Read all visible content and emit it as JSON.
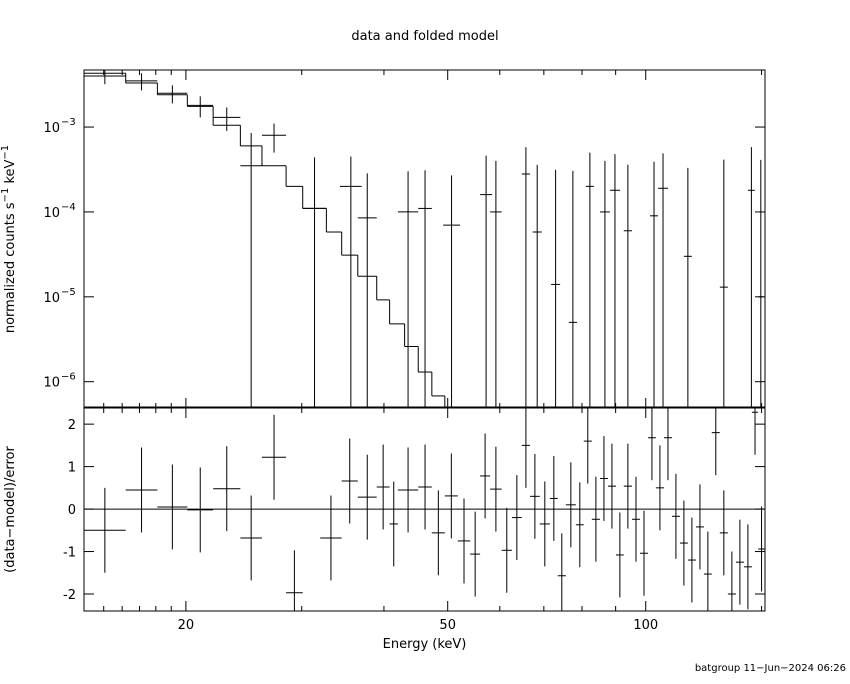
{
  "chart_data": [
    {
      "type": "step-errorbar",
      "title": "data and folded model",
      "ylabel": [
        "normalized counts s",
        "−1",
        " keV",
        "−1"
      ],
      "xlog": true,
      "ylog": true,
      "xlim": [
        14,
        151.8
      ],
      "xticks": [
        20,
        50,
        100
      ],
      "xminorticks": [
        15,
        16,
        17,
        18,
        19,
        30,
        40,
        60,
        70,
        80,
        90,
        150
      ],
      "ylim": [
        4.9e-07,
        0.0047
      ],
      "yticks": [
        {
          "value": 1e-06,
          "label": "10",
          "sup": "−6"
        },
        {
          "value": 1e-05,
          "label": "10",
          "sup": "−5"
        },
        {
          "value": 0.0001,
          "label": "10",
          "sup": "−4"
        },
        {
          "value": 0.001,
          "label": "10",
          "sup": "−3"
        }
      ],
      "color": "#000000",
      "data": {
        "x_low": [
          14.0,
          16.2,
          18.1,
          20.1,
          22.0,
          24.2,
          26.1,
          30.1,
          34.3,
          36.5,
          42.0,
          45.1,
          49.2,
          56.0,
          58.0,
          64.8,
          67.3,
          71.8,
          76.4,
          81.1,
          85.2,
          88.2,
          92.6,
          101.5,
          104.4,
          114.3,
          129.6,
          143.0,
          148.2
        ],
        "x_high": [
          16.2,
          18.1,
          20.1,
          22.0,
          24.2,
          26.1,
          28.4,
          32.7,
          37.0,
          39.0,
          45.1,
          47.3,
          52.2,
          58.4,
          60.4,
          66.7,
          69.5,
          74.1,
          78.6,
          83.4,
          88.2,
          91.4,
          95.3,
          104.4,
          108.1,
          117.5,
          133.3,
          146.5,
          151.0
        ],
        "values": [
          0.004,
          0.0035,
          0.0025,
          0.0018,
          0.0013,
          0.00035,
          0.0008,
          0.00011,
          0.0002,
          8.5e-05,
          0.0001,
          0.00011,
          7e-05,
          0.00016,
          0.0001,
          0.00028,
          5.8e-05,
          1.4e-05,
          5e-06,
          0.0002,
          0.0001,
          0.00018,
          6e-05,
          9e-05,
          0.00019,
          3e-05,
          1.3e-05,
          0.00018,
          1e-05
        ],
        "errors": [
          0.0008,
          0.0008,
          0.0006,
          0.0005,
          0.0004,
          0.0005,
          0.0003,
          0.00033,
          0.00025,
          0.0002,
          0.0002,
          0.0002,
          0.0002,
          0.0003,
          0.0003,
          0.0003,
          0.0003,
          0.0003,
          0.0003,
          0.0003,
          0.0003,
          0.0003,
          0.0003,
          0.0003,
          0.0003,
          0.0003,
          0.0004,
          0.0004,
          0.0004
        ]
      },
      "model": {
        "edges": [
          14.0,
          16.2,
          18.1,
          20.1,
          22.0,
          24.2,
          26.1,
          28.4,
          30.1,
          32.7,
          34.5,
          36.5,
          39.0,
          40.8,
          43.0,
          45.1,
          47.3,
          49.5
        ],
        "values": [
          0.0043,
          0.0033,
          0.0024,
          0.00175,
          0.00105,
          0.0006,
          0.00035,
          0.0002,
          0.00011,
          5.8e-05,
          3.1e-05,
          1.75e-05,
          9.2e-06,
          4.8e-06,
          2.6e-06,
          1.3e-06,
          6.8e-07
        ]
      }
    },
    {
      "type": "residual",
      "xlabel": "Energy (keV)",
      "ylabel": "(data−model)/error",
      "xlog": true,
      "ylog": false,
      "xlim": [
        14,
        151.8
      ],
      "xticks": [
        20,
        50,
        100
      ],
      "xminorticks": [
        15,
        16,
        17,
        18,
        19,
        30,
        40,
        60,
        70,
        80,
        90,
        150
      ],
      "ylim": [
        -2.4,
        2.38
      ],
      "yticks": [
        -2,
        -1,
        0,
        1,
        2
      ],
      "color": "#000000",
      "zero_line": 0,
      "zero_color": "#00c000",
      "data": {
        "x_low": [
          14.0,
          16.2,
          18.1,
          20.1,
          22.0,
          24.2,
          26.1,
          28.4,
          32.0,
          34.5,
          36.5,
          39.0,
          40.8,
          42.0,
          45.1,
          47.3,
          49.5,
          51.8,
          54.1,
          56.0,
          58.0,
          60.4,
          62.6,
          64.8,
          66.7,
          69.0,
          71.5,
          73.5,
          75.6,
          78.3,
          80.5,
          82.8,
          85.2,
          87.6,
          90.1,
          92.6,
          95.3,
          98.0,
          100.8,
          103.6,
          106.6,
          109.6,
          112.7,
          115.9,
          119.2,
          122.6,
          126.0,
          129.6,
          133.3,
          137.1,
          141.0,
          145.0,
          148.2
        ],
        "x_high": [
          16.2,
          18.1,
          20.1,
          22.0,
          24.2,
          26.1,
          28.4,
          30.1,
          34.5,
          36.5,
          39.0,
          40.8,
          42.0,
          45.1,
          47.3,
          49.5,
          51.8,
          54.1,
          56.0,
          58.0,
          60.4,
          62.6,
          64.8,
          66.7,
          69.0,
          71.5,
          73.5,
          75.6,
          78.3,
          80.5,
          82.8,
          85.2,
          87.6,
          90.1,
          92.6,
          95.3,
          98.0,
          100.8,
          103.6,
          106.6,
          109.6,
          112.7,
          115.9,
          119.2,
          122.6,
          126.0,
          129.6,
          133.3,
          137.1,
          141.0,
          145.0,
          148.2,
          151.8
        ],
        "values": [
          -0.5,
          0.45,
          0.05,
          -0.02,
          0.48,
          -0.68,
          1.22,
          -1.97,
          -0.68,
          0.66,
          0.28,
          0.52,
          -0.35,
          0.45,
          0.52,
          -0.56,
          0.31,
          -0.75,
          -1.06,
          0.78,
          0.47,
          -0.97,
          -0.2,
          1.5,
          0.3,
          -0.35,
          0.25,
          -1.57,
          0.1,
          -0.37,
          1.6,
          -0.24,
          0.72,
          0.54,
          -1.08,
          0.54,
          -0.24,
          -1.04,
          1.68,
          0.5,
          1.68,
          -0.17,
          -0.8,
          -1.2,
          -0.42,
          -1.53,
          1.8,
          -0.56,
          -2.0,
          -1.25,
          -1.36,
          2.28,
          -0.94
        ],
        "errors": [
          1,
          1,
          1,
          1,
          1,
          1,
          1,
          1,
          1,
          1,
          1,
          1,
          1,
          1,
          1,
          1,
          1,
          1,
          1,
          1,
          1,
          1,
          1,
          1,
          1,
          1,
          1,
          1,
          1,
          1,
          1,
          1,
          1,
          1,
          1,
          1,
          1,
          1,
          1,
          1,
          1,
          1,
          1,
          1,
          1,
          1,
          1,
          1,
          1,
          1,
          1,
          1,
          1
        ]
      }
    }
  ],
  "footer": "batgroup 11−Jun−2024 06:26"
}
